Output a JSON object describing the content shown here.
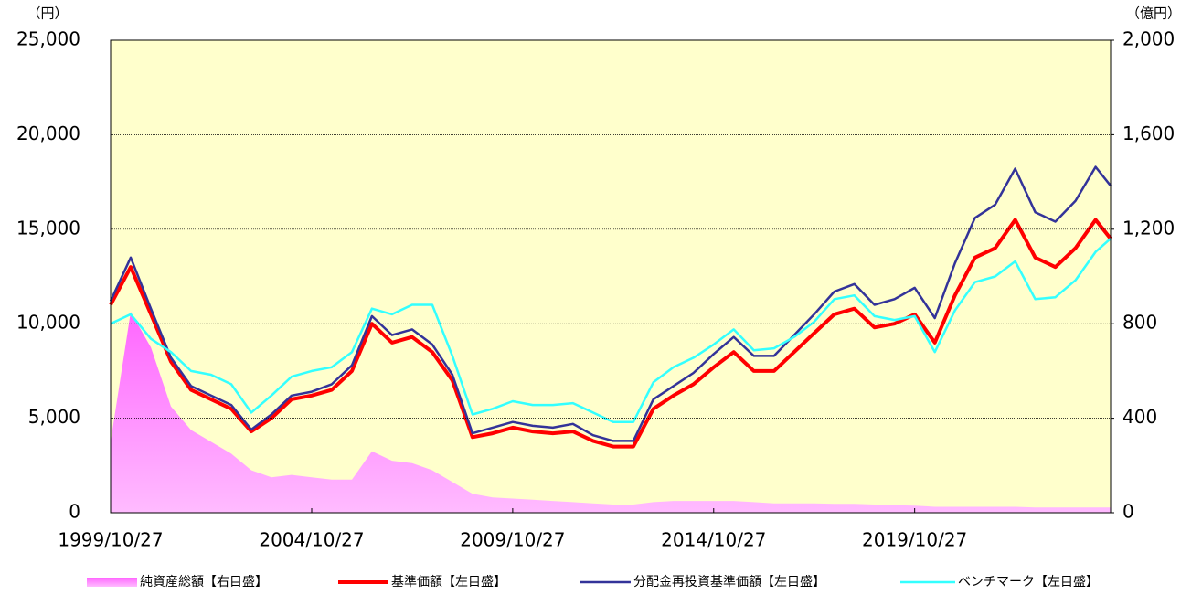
{
  "chart_data": {
    "type": "line",
    "y_label": "（円）",
    "y2_label": "（億円）",
    "x": [
      "1999/10/27",
      "2000/04/27",
      "2000/10/27",
      "2001/04/27",
      "2001/10/27",
      "2002/04/27",
      "2002/10/27",
      "2003/04/27",
      "2003/10/27",
      "2004/04/27",
      "2004/10/27",
      "2005/04/27",
      "2005/10/27",
      "2006/04/27",
      "2006/10/27",
      "2007/04/27",
      "2007/10/27",
      "2008/04/27",
      "2008/10/27",
      "2009/04/27",
      "2009/10/27",
      "2010/04/27",
      "2010/10/27",
      "2011/04/27",
      "2011/10/27",
      "2012/04/27",
      "2012/10/27",
      "2013/04/27",
      "2013/10/27",
      "2014/04/27",
      "2014/10/27",
      "2015/04/27",
      "2015/10/27",
      "2016/04/27",
      "2016/10/27",
      "2017/04/27",
      "2017/10/27",
      "2018/04/27",
      "2018/10/27",
      "2019/04/27",
      "2019/10/27",
      "2020/04/27",
      "2020/10/27",
      "2021/04/27",
      "2021/10/27",
      "2022/04/27",
      "2022/10/27",
      "2023/04/27",
      "2023/10/27",
      "2024/04/27",
      "2024/09/10"
    ],
    "xlim": [
      "1999/10/27",
      "2024/09/10"
    ],
    "xticks": [
      "1999/10/27",
      "2004/10/27",
      "2009/10/27",
      "2014/10/27",
      "2019/10/27"
    ],
    "ylim": [
      0,
      25000
    ],
    "yticks": [
      0,
      {
        "value": 5000,
        "label": "5,000"
      },
      {
        "value": 10000,
        "label": "10,000"
      },
      {
        "value": 15000,
        "label": "15,000"
      },
      {
        "value": 20000,
        "label": "20,000"
      },
      {
        "value": 25000,
        "label": "25,000"
      }
    ],
    "y2lim": [
      0,
      2000
    ],
    "y2ticks": [
      0,
      400,
      800,
      {
        "value": 1200,
        "label": "1,200"
      },
      {
        "value": 1600,
        "label": "1,600"
      },
      {
        "value": 2000,
        "label": "2,000"
      }
    ],
    "grid": true,
    "legend": "bottom",
    "series": [
      {
        "name": "純資産総額【右目盛】",
        "type": "area",
        "axis": "y2",
        "color": "#ff99ff",
        "values": [
          300,
          850,
          700,
          450,
          350,
          300,
          250,
          180,
          150,
          160,
          150,
          140,
          140,
          260,
          220,
          210,
          180,
          130,
          80,
          65,
          60,
          55,
          50,
          45,
          40,
          35,
          35,
          45,
          50,
          50,
          50,
          50,
          45,
          40,
          40,
          40,
          38,
          38,
          35,
          32,
          30,
          25,
          25,
          25,
          25,
          25,
          22,
          22,
          22,
          22,
          22
        ]
      },
      {
        "name": "基準価額【左目盛】",
        "type": "line",
        "color": "#ff0000",
        "values": [
          11000,
          13000,
          10500,
          8000,
          6500,
          6000,
          5500,
          4300,
          5000,
          6000,
          6200,
          6500,
          7500,
          10000,
          9000,
          9300,
          8500,
          7000,
          4000,
          4200,
          4500,
          4300,
          4200,
          4300,
          3800,
          3500,
          3500,
          5500,
          6200,
          6800,
          7700,
          8500,
          7500,
          7500,
          8500,
          9500,
          10500,
          10800,
          9800,
          10000,
          10500,
          9000,
          11500,
          13500,
          14000,
          15500,
          13500,
          13000,
          14000,
          15500,
          14500
        ]
      },
      {
        "name": "分配金再投資基準価額【左目盛】",
        "type": "line",
        "color": "#333399",
        "values": [
          11200,
          13500,
          10800,
          8200,
          6700,
          6200,
          5700,
          4400,
          5200,
          6200,
          6400,
          6800,
          7800,
          10400,
          9400,
          9700,
          8900,
          7300,
          4200,
          4500,
          4800,
          4600,
          4500,
          4700,
          4100,
          3800,
          3800,
          6000,
          6700,
          7400,
          8400,
          9300,
          8300,
          8300,
          9400,
          10500,
          11700,
          12100,
          11000,
          11300,
          11900,
          10300,
          13200,
          15600,
          16300,
          18200,
          15900,
          15400,
          16500,
          18300,
          17300
        ]
      },
      {
        "name": "ベンチマーク【左目盛】",
        "type": "line",
        "color": "#33ffff",
        "values": [
          10000,
          10500,
          9200,
          8500,
          7500,
          7300,
          6800,
          5300,
          6200,
          7200,
          7500,
          7700,
          8500,
          10800,
          10500,
          11000,
          11000,
          8300,
          5200,
          5500,
          5900,
          5700,
          5700,
          5800,
          5300,
          4800,
          4800,
          6900,
          7700,
          8200,
          8900,
          9700,
          8600,
          8700,
          9300,
          10100,
          11300,
          11500,
          10400,
          10200,
          10400,
          8500,
          10700,
          12200,
          12500,
          13300,
          11300,
          11400,
          12300,
          13800,
          14500
        ]
      }
    ]
  }
}
